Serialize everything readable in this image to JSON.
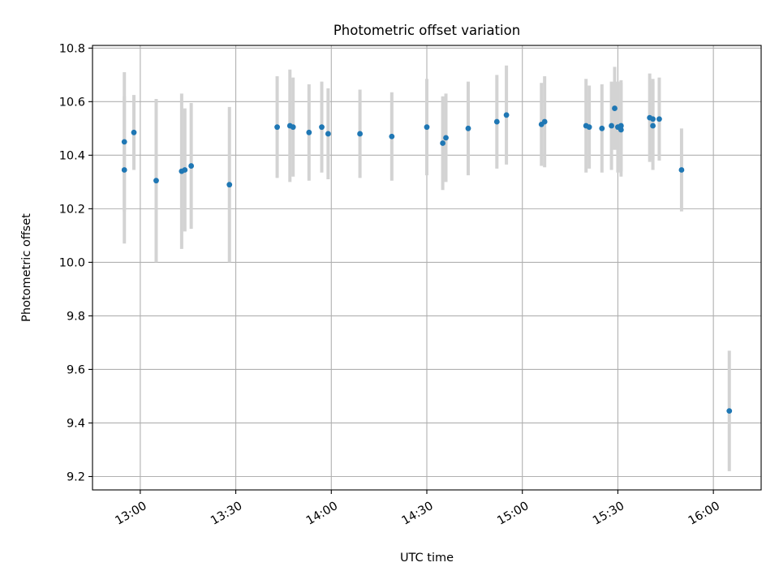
{
  "chart_data": {
    "type": "scatter",
    "title": "Photometric offset variation",
    "xlabel": "UTC time",
    "ylabel": "Photometric offset",
    "xlim": [
      "12:45",
      "16:15"
    ],
    "ylim": [
      9.15,
      10.81
    ],
    "x_ticks": [
      "13:00",
      "13:30",
      "14:00",
      "14:30",
      "15:00",
      "15:30",
      "16:00"
    ],
    "y_ticks": [
      "9.2",
      "9.4",
      "9.6",
      "9.8",
      "10.0",
      "10.2",
      "10.4",
      "10.6",
      "10.8"
    ],
    "grid": true,
    "colors": {
      "point": "#1f77b4",
      "errorbar": "#d3d3d3"
    },
    "points": [
      {
        "x": "12:55",
        "y": 10.345,
        "err": 0.275
      },
      {
        "x": "12:55",
        "y": 10.45,
        "err": 0.26
      },
      {
        "x": "12:58",
        "y": 10.485,
        "err": 0.14
      },
      {
        "x": "13:05",
        "y": 10.305,
        "err": 0.305
      },
      {
        "x": "13:13",
        "y": 10.34,
        "err": 0.29
      },
      {
        "x": "13:14",
        "y": 10.345,
        "err": 0.23
      },
      {
        "x": "13:16",
        "y": 10.36,
        "err": 0.235
      },
      {
        "x": "13:28",
        "y": 10.29,
        "err": 0.29
      },
      {
        "x": "13:43",
        "y": 10.505,
        "err": 0.19
      },
      {
        "x": "13:47",
        "y": 10.51,
        "err": 0.21
      },
      {
        "x": "13:48",
        "y": 10.505,
        "err": 0.185
      },
      {
        "x": "13:53",
        "y": 10.485,
        "err": 0.18
      },
      {
        "x": "13:57",
        "y": 10.505,
        "err": 0.17
      },
      {
        "x": "13:59",
        "y": 10.48,
        "err": 0.17
      },
      {
        "x": "14:09",
        "y": 10.48,
        "err": 0.165
      },
      {
        "x": "14:19",
        "y": 10.47,
        "err": 0.165
      },
      {
        "x": "14:30",
        "y": 10.505,
        "err": 0.18
      },
      {
        "x": "14:35",
        "y": 10.445,
        "err": 0.175
      },
      {
        "x": "14:36",
        "y": 10.465,
        "err": 0.165
      },
      {
        "x": "14:43",
        "y": 10.5,
        "err": 0.175
      },
      {
        "x": "14:52",
        "y": 10.525,
        "err": 0.175
      },
      {
        "x": "14:55",
        "y": 10.55,
        "err": 0.185
      },
      {
        "x": "15:06",
        "y": 10.515,
        "err": 0.155
      },
      {
        "x": "15:07",
        "y": 10.525,
        "err": 0.17
      },
      {
        "x": "15:20",
        "y": 10.51,
        "err": 0.175
      },
      {
        "x": "15:21",
        "y": 10.505,
        "err": 0.155
      },
      {
        "x": "15:25",
        "y": 10.5,
        "err": 0.165
      },
      {
        "x": "15:28",
        "y": 10.51,
        "err": 0.165
      },
      {
        "x": "15:29",
        "y": 10.575,
        "err": 0.155
      },
      {
        "x": "15:30",
        "y": 10.505,
        "err": 0.17
      },
      {
        "x": "15:31",
        "y": 10.495,
        "err": 0.175
      },
      {
        "x": "15:31",
        "y": 10.51,
        "err": 0.17
      },
      {
        "x": "15:40",
        "y": 10.54,
        "err": 0.165
      },
      {
        "x": "15:41",
        "y": 10.535,
        "err": 0.15
      },
      {
        "x": "15:41",
        "y": 10.51,
        "err": 0.165
      },
      {
        "x": "15:43",
        "y": 10.535,
        "err": 0.155
      },
      {
        "x": "15:50",
        "y": 10.345,
        "err": 0.155
      },
      {
        "x": "16:05",
        "y": 9.445,
        "err": 0.225
      }
    ]
  }
}
